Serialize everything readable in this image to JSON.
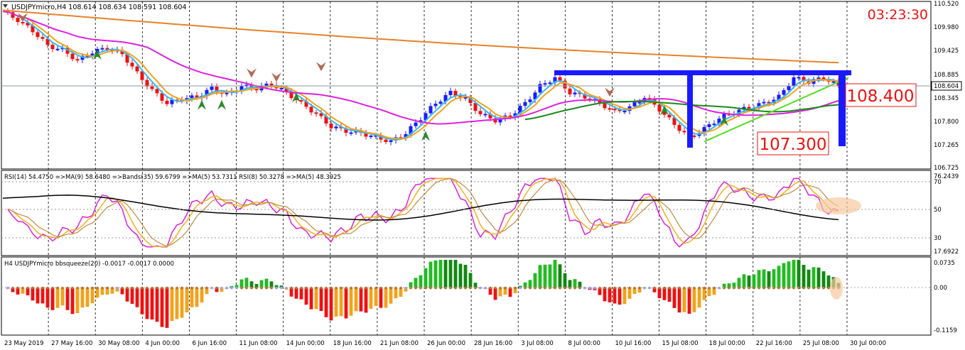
{
  "header": {
    "symbol_info": "USDJPYmicro,H4  108.614 108.634 108.591 108.604",
    "clock": "03:23:30"
  },
  "price_axis": {
    "ticks": [
      "110.520",
      "109.980",
      "109.425",
      "108.885",
      "108.345",
      "107.800",
      "107.265",
      "106.725"
    ],
    "current_price": "108.604"
  },
  "annotations": {
    "upper_level": "108.400",
    "lower_level": "107.300"
  },
  "rsi_panel": {
    "legend": "RSI(14) 54.4750  =>MA(9) 58.6480  =>Bands(35) 59.6799  =>MA(5) 53.7311  RSI(8) 50.3278  =>MA(5) 48.3925",
    "ticks": [
      "76.2439",
      "70",
      "50",
      "30",
      "17.6922"
    ]
  },
  "squeeze_panel": {
    "legend": "H4 USDJPYmicro bbsqueeze(20) -0.0017 -0.0017 0.0000",
    "ticks": [
      "0.0735",
      "0.00",
      "-0.1159"
    ]
  },
  "time_axis": {
    "labels": [
      "23 May 2019",
      "27 May 16:00",
      "30 May 08:00",
      "4 Jun 00:00",
      "6 Jun 16:00",
      "11 Jun 08:00",
      "14 Jun 00:00",
      "18 Jun 16:00",
      "21 Jun 08:00",
      "26 Jun 00:00",
      "28 Jun 16:00",
      "3 Jul 08:00",
      "8 Jul 00:00",
      "10 Jul 16:00",
      "15 Jul 08:00",
      "18 Jul 00:00",
      "22 Jul 16:00",
      "25 Jul 08:00",
      "30 Jul 00:00"
    ]
  },
  "colors": {
    "bull_bar": "#1a1aff",
    "bear_bar": "#ee1111",
    "ma_orange_slow": "#e8812a",
    "ma_magenta": "#dd22dd",
    "ma_green": "#1a8a1a",
    "ma_fast_orange": "#f2a21a",
    "ma_fast_cyan": "#33bbee",
    "channel_blue": "#1a1aff",
    "label_red": "#ee1111"
  },
  "chart_data": {
    "type": "candlestick",
    "symbol": "USDJPYmicro",
    "timeframe": "H4",
    "ylim": [
      106.725,
      110.52
    ],
    "close_path": [
      [
        0,
        110.35
      ],
      [
        3,
        110.15
      ],
      [
        6,
        109.9
      ],
      [
        9,
        109.55
      ],
      [
        12,
        109.45
      ],
      [
        15,
        109.2
      ],
      [
        18,
        109.4
      ],
      [
        21,
        109.5
      ],
      [
        24,
        109.35
      ],
      [
        27,
        108.9
      ],
      [
        30,
        108.5
      ],
      [
        33,
        108.2
      ],
      [
        36,
        108.3
      ],
      [
        39,
        108.35
      ],
      [
        42,
        108.55
      ],
      [
        45,
        108.4
      ],
      [
        48,
        108.6
      ],
      [
        51,
        108.55
      ],
      [
        54,
        108.65
      ],
      [
        57,
        108.45
      ],
      [
        60,
        108.2
      ],
      [
        63,
        107.95
      ],
      [
        66,
        107.65
      ],
      [
        69,
        107.55
      ],
      [
        72,
        107.5
      ],
      [
        75,
        107.4
      ],
      [
        78,
        107.3
      ],
      [
        81,
        107.5
      ],
      [
        84,
        107.85
      ],
      [
        87,
        108.2
      ],
      [
        90,
        108.45
      ],
      [
        93,
        108.3
      ],
      [
        96,
        107.95
      ],
      [
        99,
        107.8
      ],
      [
        102,
        107.9
      ],
      [
        105,
        108.2
      ],
      [
        108,
        108.6
      ],
      [
        111,
        108.8
      ],
      [
        114,
        108.45
      ],
      [
        117,
        108.35
      ],
      [
        120,
        108.2
      ],
      [
        123,
        108.0
      ],
      [
        126,
        108.1
      ],
      [
        129,
        108.35
      ],
      [
        132,
        108.05
      ],
      [
        135,
        107.7
      ],
      [
        138,
        107.4
      ],
      [
        141,
        107.6
      ],
      [
        144,
        107.85
      ],
      [
        147,
        108.0
      ],
      [
        150,
        108.1
      ],
      [
        153,
        108.2
      ],
      [
        156,
        108.35
      ],
      [
        159,
        108.8
      ],
      [
        162,
        108.7
      ],
      [
        165,
        108.8
      ],
      [
        168,
        108.6
      ]
    ],
    "horizontal_levels": [
      108.4,
      107.3
    ],
    "rsi_ylim": [
      17.6922,
      76.2439
    ],
    "rsi_levels": [
      70,
      50,
      30
    ],
    "squeeze_ylim": [
      -0.1159,
      0.0735
    ]
  }
}
